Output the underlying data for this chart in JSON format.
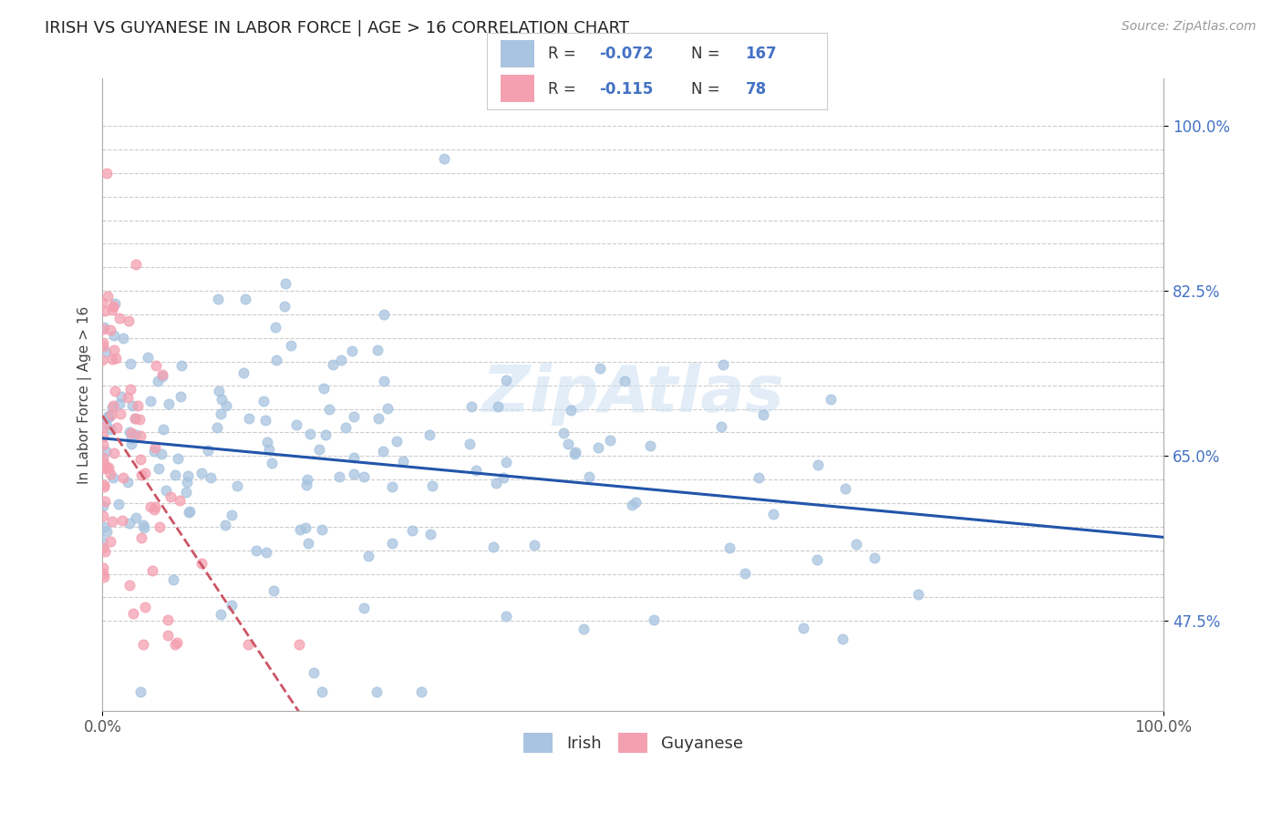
{
  "title": "IRISH VS GUYANESE IN LABOR FORCE | AGE > 16 CORRELATION CHART",
  "source_text": "Source: ZipAtlas.com",
  "ylabel": "In Labor Force | Age > 16",
  "xlim": [
    0.0,
    1.0
  ],
  "ylim": [
    0.38,
    1.05
  ],
  "xtick_labels": [
    "0.0%",
    "100.0%"
  ],
  "ytick_positions": [
    0.475,
    0.65,
    0.825,
    1.0
  ],
  "ytick_labels": [
    "47.5%",
    "65.0%",
    "82.5%",
    "100.0%"
  ],
  "grid_y_positions": [
    0.475,
    0.5,
    0.525,
    0.55,
    0.575,
    0.6,
    0.625,
    0.65,
    0.675,
    0.7,
    0.725,
    0.75,
    0.775,
    0.8,
    0.825,
    0.85,
    0.875,
    0.9,
    0.925,
    0.95,
    0.975,
    1.0
  ],
  "irish_color": "#a8c4e0",
  "guyanese_color": "#f4a0b0",
  "irish_line_color": "#2255aa",
  "guyanese_line_color": "#cc5566",
  "grid_color": "#cccccc",
  "background_color": "#ffffff",
  "title_color": "#222222",
  "label_color": "#4472c4",
  "irish_R": -0.072,
  "irish_N": 167,
  "guyanese_R": -0.115,
  "guyanese_N": 78,
  "watermark": "ZipAtlas"
}
